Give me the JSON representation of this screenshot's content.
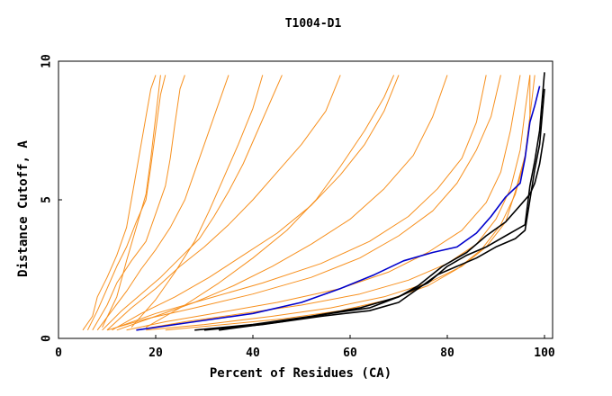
{
  "chart_data": {
    "type": "line",
    "title": "T1004-D1",
    "xlabel": "Percent of Residues (CA)",
    "ylabel": "Distance Cutoff, A",
    "xlim": [
      0,
      100
    ],
    "ylim": [
      0,
      10
    ],
    "x_ticks": [
      "0",
      "20",
      "40",
      "60",
      "80",
      "100"
    ],
    "y_ticks": [
      "0",
      "5",
      "10"
    ],
    "grid": false,
    "colors": {
      "bundle": "#f7901e",
      "highlight_blue": "#0000cc",
      "highlight_black": "#000000"
    },
    "bundle_description": "Dense set of orange GDT curves (one per model)",
    "series": [
      {
        "name": "orange-1",
        "color": "#f7901e",
        "points": [
          [
            5,
            0.3
          ],
          [
            7,
            0.8
          ],
          [
            8,
            1.5
          ],
          [
            10,
            2.2
          ],
          [
            12,
            3
          ],
          [
            14,
            4
          ],
          [
            15,
            5
          ],
          [
            16,
            6
          ],
          [
            17,
            7
          ],
          [
            18,
            8
          ],
          [
            19,
            9
          ],
          [
            20,
            9.5
          ]
        ]
      },
      {
        "name": "orange-2",
        "color": "#f7901e",
        "points": [
          [
            6,
            0.3
          ],
          [
            8,
            1
          ],
          [
            10,
            1.8
          ],
          [
            12,
            2.6
          ],
          [
            14,
            3.3
          ],
          [
            16,
            4.2
          ],
          [
            18,
            5
          ],
          [
            19,
            6.2
          ],
          [
            20,
            7.5
          ],
          [
            21,
            8.8
          ],
          [
            22,
            9.5
          ]
        ]
      },
      {
        "name": "orange-3",
        "color": "#f7901e",
        "points": [
          [
            7,
            0.3
          ],
          [
            10,
            1.2
          ],
          [
            12,
            2
          ],
          [
            15,
            2.8
          ],
          [
            18,
            3.5
          ],
          [
            20,
            4.5
          ],
          [
            22,
            5.5
          ],
          [
            23,
            6.5
          ],
          [
            24,
            7.8
          ],
          [
            25,
            9
          ],
          [
            26,
            9.5
          ]
        ]
      },
      {
        "name": "orange-4",
        "color": "#f7901e",
        "points": [
          [
            8,
            0.3
          ],
          [
            11,
            1
          ],
          [
            14,
            1.7
          ],
          [
            17,
            2.5
          ],
          [
            20,
            3.2
          ],
          [
            23,
            4
          ],
          [
            26,
            5
          ],
          [
            28,
            6
          ],
          [
            30,
            7
          ],
          [
            33,
            8.5
          ],
          [
            35,
            9.5
          ]
        ]
      },
      {
        "name": "orange-5",
        "color": "#f7901e",
        "points": [
          [
            9,
            0.3
          ],
          [
            13,
            1
          ],
          [
            17,
            1.6
          ],
          [
            21,
            2.2
          ],
          [
            25,
            2.9
          ],
          [
            29,
            3.6
          ],
          [
            32,
            4.4
          ],
          [
            35,
            5.3
          ],
          [
            38,
            6.3
          ],
          [
            41,
            7.5
          ],
          [
            44,
            8.7
          ],
          [
            46,
            9.5
          ]
        ]
      },
      {
        "name": "orange-6",
        "color": "#f7901e",
        "points": [
          [
            10,
            0.3
          ],
          [
            15,
            1.1
          ],
          [
            20,
            1.8
          ],
          [
            25,
            2.6
          ],
          [
            30,
            3.3
          ],
          [
            35,
            4.1
          ],
          [
            40,
            5
          ],
          [
            45,
            6
          ],
          [
            50,
            7
          ],
          [
            55,
            8.2
          ],
          [
            58,
            9.5
          ]
        ]
      },
      {
        "name": "orange-7",
        "color": "#f7901e",
        "points": [
          [
            11,
            0.3
          ],
          [
            17,
            0.9
          ],
          [
            24,
            1.5
          ],
          [
            31,
            2.2
          ],
          [
            38,
            3
          ],
          [
            45,
            3.8
          ],
          [
            52,
            4.8
          ],
          [
            58,
            5.9
          ],
          [
            63,
            7
          ],
          [
            67,
            8.2
          ],
          [
            70,
            9.5
          ]
        ]
      },
      {
        "name": "orange-8",
        "color": "#f7901e",
        "points": [
          [
            12,
            0.3
          ],
          [
            20,
            0.8
          ],
          [
            28,
            1.3
          ],
          [
            36,
            1.9
          ],
          [
            44,
            2.6
          ],
          [
            52,
            3.4
          ],
          [
            60,
            4.3
          ],
          [
            67,
            5.4
          ],
          [
            73,
            6.6
          ],
          [
            77,
            8
          ],
          [
            80,
            9.5
          ]
        ]
      },
      {
        "name": "orange-9",
        "color": "#f7901e",
        "points": [
          [
            9,
            0.4
          ],
          [
            12,
            1.5
          ],
          [
            14,
            2.8
          ],
          [
            16,
            4
          ],
          [
            18,
            5.2
          ],
          [
            19,
            6.5
          ],
          [
            20,
            8
          ],
          [
            21,
            9.5
          ]
        ]
      },
      {
        "name": "orange-10",
        "color": "#f7901e",
        "points": [
          [
            15,
            0.4
          ],
          [
            20,
            1.4
          ],
          [
            24,
            2.4
          ],
          [
            28,
            3.5
          ],
          [
            31,
            4.6
          ],
          [
            34,
            5.8
          ],
          [
            37,
            7
          ],
          [
            40,
            8.3
          ],
          [
            42,
            9.5
          ]
        ]
      },
      {
        "name": "orange-11",
        "color": "#f7901e",
        "points": [
          [
            18,
            0.4
          ],
          [
            26,
            1.2
          ],
          [
            33,
            2
          ],
          [
            40,
            2.9
          ],
          [
            47,
            3.9
          ],
          [
            53,
            5
          ],
          [
            58,
            6.2
          ],
          [
            63,
            7.5
          ],
          [
            67,
            8.7
          ],
          [
            69,
            9.5
          ]
        ]
      },
      {
        "name": "orange-12",
        "color": "#f7901e",
        "points": [
          [
            14,
            0.3
          ],
          [
            22,
            0.6
          ],
          [
            32,
            0.9
          ],
          [
            45,
            1.3
          ],
          [
            58,
            1.8
          ],
          [
            68,
            2.4
          ],
          [
            76,
            3.1
          ],
          [
            83,
            3.9
          ],
          [
            88,
            4.9
          ],
          [
            91,
            6
          ],
          [
            93,
            7.5
          ],
          [
            94,
            8.5
          ],
          [
            95,
            9.5
          ]
        ]
      },
      {
        "name": "orange-13",
        "color": "#f7901e",
        "points": [
          [
            16,
            0.3
          ],
          [
            26,
            0.6
          ],
          [
            38,
            0.9
          ],
          [
            50,
            1.2
          ],
          [
            62,
            1.6
          ],
          [
            72,
            2.1
          ],
          [
            80,
            2.7
          ],
          [
            86,
            3.4
          ],
          [
            90,
            4.3
          ],
          [
            93,
            5.4
          ],
          [
            95,
            6.8
          ],
          [
            96,
            8.2
          ],
          [
            97,
            9.5
          ]
        ]
      },
      {
        "name": "orange-14",
        "color": "#f7901e",
        "points": [
          [
            18,
            0.3
          ],
          [
            30,
            0.5
          ],
          [
            44,
            0.8
          ],
          [
            56,
            1.1
          ],
          [
            67,
            1.5
          ],
          [
            76,
            2
          ],
          [
            83,
            2.6
          ],
          [
            88,
            3.3
          ],
          [
            92,
            4.2
          ],
          [
            94,
            5.3
          ],
          [
            96,
            6.6
          ],
          [
            97,
            8
          ],
          [
            97,
            9.5
          ]
        ]
      },
      {
        "name": "orange-15",
        "color": "#f7901e",
        "points": [
          [
            22,
            0.3
          ],
          [
            34,
            0.5
          ],
          [
            46,
            0.7
          ],
          [
            58,
            1
          ],
          [
            68,
            1.4
          ],
          [
            76,
            1.9
          ],
          [
            82,
            2.5
          ],
          [
            87,
            3.2
          ],
          [
            91,
            4.1
          ],
          [
            94,
            5.2
          ],
          [
            96,
            6.5
          ],
          [
            97,
            8
          ],
          [
            98,
            9.5
          ]
        ]
      },
      {
        "name": "orange-16",
        "color": "#f7901e",
        "points": [
          [
            12,
            0.4
          ],
          [
            20,
            0.9
          ],
          [
            30,
            1.4
          ],
          [
            42,
            2
          ],
          [
            54,
            2.7
          ],
          [
            64,
            3.5
          ],
          [
            72,
            4.4
          ],
          [
            78,
            5.4
          ],
          [
            83,
            6.5
          ],
          [
            86,
            7.8
          ],
          [
            88,
            9.5
          ]
        ]
      },
      {
        "name": "orange-17",
        "color": "#f7901e",
        "points": [
          [
            10,
            0.3
          ],
          [
            18,
            0.7
          ],
          [
            28,
            1.1
          ],
          [
            40,
            1.6
          ],
          [
            52,
            2.2
          ],
          [
            62,
            2.9
          ],
          [
            70,
            3.7
          ],
          [
            77,
            4.6
          ],
          [
            82,
            5.6
          ],
          [
            86,
            6.8
          ],
          [
            89,
            8
          ],
          [
            91,
            9.5
          ]
        ]
      },
      {
        "name": "blue",
        "color": "#0000cc",
        "points": [
          [
            16,
            0.3
          ],
          [
            28,
            0.6
          ],
          [
            40,
            0.9
          ],
          [
            50,
            1.3
          ],
          [
            58,
            1.8
          ],
          [
            65,
            2.3
          ],
          [
            71,
            2.8
          ],
          [
            77,
            3.1
          ],
          [
            82,
            3.3
          ],
          [
            86,
            3.8
          ],
          [
            89,
            4.4
          ],
          [
            92,
            5.1
          ],
          [
            95,
            5.6
          ],
          [
            96,
            6.5
          ],
          [
            97,
            7.8
          ],
          [
            98,
            8.4
          ],
          [
            99,
            9.1
          ]
        ]
      },
      {
        "name": "black-1",
        "color": "#000000",
        "points": [
          [
            28,
            0.3
          ],
          [
            40,
            0.5
          ],
          [
            52,
            0.8
          ],
          [
            62,
            1.1
          ],
          [
            70,
            1.5
          ],
          [
            76,
            2
          ],
          [
            80,
            2.6
          ],
          [
            84,
            3
          ],
          [
            88,
            3.3
          ],
          [
            92,
            3.7
          ],
          [
            96,
            4.1
          ],
          [
            97,
            5.5
          ],
          [
            98,
            6.4
          ],
          [
            99,
            7.5
          ],
          [
            100,
            9.6
          ]
        ]
      },
      {
        "name": "black-2",
        "color": "#000000",
        "points": [
          [
            30,
            0.3
          ],
          [
            42,
            0.5
          ],
          [
            54,
            0.8
          ],
          [
            64,
            1
          ],
          [
            70,
            1.3
          ],
          [
            74,
            1.8
          ],
          [
            78,
            2.3
          ],
          [
            82,
            2.6
          ],
          [
            86,
            2.9
          ],
          [
            90,
            3.3
          ],
          [
            94,
            3.6
          ],
          [
            96,
            3.9
          ],
          [
            97,
            5
          ],
          [
            98,
            6.1
          ],
          [
            99,
            7
          ],
          [
            100,
            9
          ]
        ]
      },
      {
        "name": "black-3",
        "color": "#000000",
        "points": [
          [
            33,
            0.3
          ],
          [
            46,
            0.6
          ],
          [
            56,
            0.9
          ],
          [
            64,
            1.1
          ],
          [
            70,
            1.5
          ],
          [
            74,
            1.9
          ],
          [
            79,
            2.6
          ],
          [
            84,
            3.1
          ],
          [
            88,
            3.7
          ],
          [
            92,
            4.2
          ],
          [
            95,
            4.8
          ],
          [
            97,
            5.2
          ],
          [
            98,
            5.6
          ],
          [
            99,
            6.3
          ],
          [
            100,
            7.4
          ]
        ]
      }
    ]
  }
}
